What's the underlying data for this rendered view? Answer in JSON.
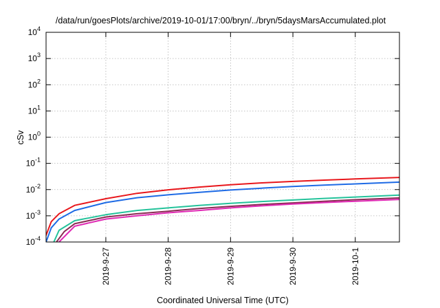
{
  "chart_data": {
    "type": "line",
    "title": "/data/run/goesPlots/archive/2019-10-01/17:00/bryn/../bryn/5daysMarsAccumulated.plot",
    "xlabel": "Coordinated Universal Time (UTC)",
    "ylabel": "cSv",
    "yscale": "log",
    "grid": true,
    "xlim": [
      "2019-09-26T01:00",
      "2019-10-01T17:00"
    ],
    "ylim": [
      0.0001,
      10000
    ],
    "x_ticks": [
      {
        "x": "2019-09-27T00:00",
        "label": "2019-9-27"
      },
      {
        "x": "2019-09-28T00:00",
        "label": "2019-9-28"
      },
      {
        "x": "2019-09-29T00:00",
        "label": "2019-9-29"
      },
      {
        "x": "2019-09-30T00:00",
        "label": "2019-9-30"
      },
      {
        "x": "2019-10-01T00:00",
        "label": "2019-10-1"
      }
    ],
    "y_ticks": [
      {
        "value": 0.0001,
        "base": "10",
        "exp": "-4"
      },
      {
        "value": 0.001,
        "base": "10",
        "exp": "-3"
      },
      {
        "value": 0.01,
        "base": "10",
        "exp": "-2"
      },
      {
        "value": 0.1,
        "base": "10",
        "exp": "-1"
      },
      {
        "value": 1,
        "base": "10",
        "exp": "0"
      },
      {
        "value": 10,
        "base": "10",
        "exp": "1"
      },
      {
        "value": 100,
        "base": "10",
        "exp": "2"
      },
      {
        "value": 1000,
        "base": "10",
        "exp": "3"
      },
      {
        "value": 10000,
        "base": "10",
        "exp": "4"
      }
    ],
    "series": [
      {
        "color": "#e8161b",
        "x": [
          "2019-09-26T01:00",
          "2019-09-26T03:00",
          "2019-09-26T06:00",
          "2019-09-26T12:00",
          "2019-09-27T00:00",
          "2019-09-27T12:00",
          "2019-09-28T00:00",
          "2019-09-28T12:00",
          "2019-09-29T00:00",
          "2019-09-29T12:00",
          "2019-09-30T00:00",
          "2019-09-30T12:00",
          "2019-10-01T00:00",
          "2019-10-01T17:00"
        ],
        "y": [
          0.00018,
          0.0006,
          0.0012,
          0.0025,
          0.0045,
          0.0072,
          0.0098,
          0.0125,
          0.0152,
          0.018,
          0.0205,
          0.023,
          0.0255,
          0.029
        ]
      },
      {
        "color": "#1d6ae5",
        "x": [
          "2019-09-26T01:00",
          "2019-09-26T03:00",
          "2019-09-26T06:00",
          "2019-09-26T12:00",
          "2019-09-27T00:00",
          "2019-09-27T12:00",
          "2019-09-28T00:00",
          "2019-09-28T12:00",
          "2019-09-29T00:00",
          "2019-09-29T12:00",
          "2019-09-30T00:00",
          "2019-09-30T12:00",
          "2019-10-01T00:00",
          "2019-10-01T17:00"
        ],
        "y": [
          0.0001,
          0.00035,
          0.00075,
          0.0016,
          0.0032,
          0.0049,
          0.0063,
          0.0079,
          0.0096,
          0.0113,
          0.0131,
          0.0148,
          0.0165,
          0.0192
        ]
      },
      {
        "color": "#23c29a",
        "x": [
          "2019-09-26T04:00",
          "2019-09-26T06:00",
          "2019-09-26T12:00",
          "2019-09-27T00:00",
          "2019-09-27T12:00",
          "2019-09-28T00:00",
          "2019-09-28T12:00",
          "2019-09-29T00:00",
          "2019-09-29T12:00",
          "2019-09-30T00:00",
          "2019-09-30T12:00",
          "2019-10-01T00:00",
          "2019-10-01T17:00"
        ],
        "y": [
          0.0001,
          0.00028,
          0.00065,
          0.0011,
          0.0016,
          0.002,
          0.0025,
          0.003,
          0.0035,
          0.004,
          0.0046,
          0.0052,
          0.0062
        ]
      },
      {
        "color": "#8a2a52",
        "x": [
          "2019-09-26T05:00",
          "2019-09-26T08:00",
          "2019-09-26T12:00",
          "2019-09-27T00:00",
          "2019-09-27T12:00",
          "2019-09-28T00:00",
          "2019-09-28T12:00",
          "2019-09-29T00:00",
          "2019-09-29T12:00",
          "2019-09-30T00:00",
          "2019-09-30T12:00",
          "2019-10-01T00:00",
          "2019-10-01T17:00"
        ],
        "y": [
          0.0001,
          0.00025,
          0.0005,
          0.0009,
          0.0012,
          0.0015,
          0.0019,
          0.0023,
          0.0027,
          0.0031,
          0.0036,
          0.0041,
          0.0048
        ]
      },
      {
        "color": "#e029b4",
        "x": [
          "2019-09-26T06:00",
          "2019-09-26T09:00",
          "2019-09-26T12:00",
          "2019-09-27T00:00",
          "2019-09-27T12:00",
          "2019-09-28T00:00",
          "2019-09-28T12:00",
          "2019-09-29T00:00",
          "2019-09-29T12:00",
          "2019-09-30T00:00",
          "2019-09-30T12:00",
          "2019-10-01T00:00",
          "2019-10-01T17:00"
        ],
        "y": [
          0.0001,
          0.0002,
          0.0004,
          0.00075,
          0.001,
          0.0013,
          0.0016,
          0.002,
          0.0024,
          0.0028,
          0.0032,
          0.0036,
          0.0042
        ]
      }
    ]
  }
}
